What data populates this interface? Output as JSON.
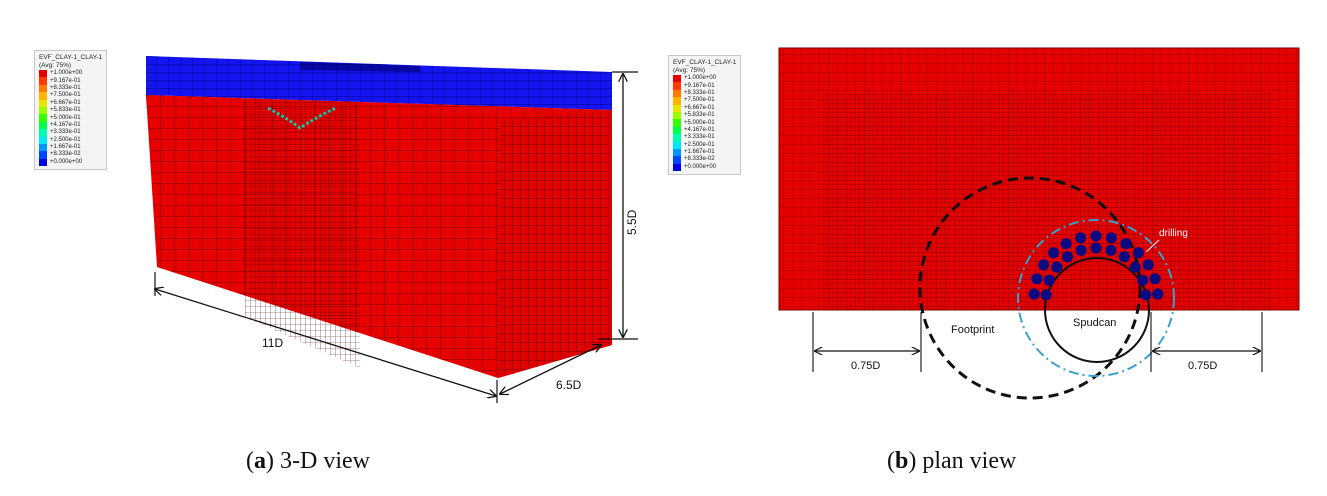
{
  "legend": {
    "title": "EVF_CLAY-1_CLAY-1",
    "subtitle": "(Avg: 75%)",
    "entries": [
      {
        "value": "+1.000e+00",
        "color": "#e60000"
      },
      {
        "value": "+9.167e-01",
        "color": "#ff3a00"
      },
      {
        "value": "+8.333e-01",
        "color": "#ff7a00"
      },
      {
        "value": "+7.500e-01",
        "color": "#ffb400"
      },
      {
        "value": "+6.667e-01",
        "color": "#e6e600"
      },
      {
        "value": "+5.833e-01",
        "color": "#9cff00"
      },
      {
        "value": "+5.000e-01",
        "color": "#32ff00"
      },
      {
        "value": "+4.167e-01",
        "color": "#00ff46"
      },
      {
        "value": "+3.333e-01",
        "color": "#00ffb4"
      },
      {
        "value": "+2.500e-01",
        "color": "#00e6ff"
      },
      {
        "value": "+1.667e-01",
        "color": "#0096ff"
      },
      {
        "value": "+8.333e-02",
        "color": "#0046ff"
      },
      {
        "value": "+0.000e+00",
        "color": "#0000e0"
      }
    ]
  },
  "view_3d": {
    "dimensions": {
      "length": "11D",
      "width": "6.5D",
      "height": "5.5D"
    },
    "caption_letter": "a",
    "caption_text": " 3-D view"
  },
  "view_plan": {
    "labels": {
      "footprint": "Footprint",
      "spudcan": "Spudcan",
      "drilling": "drilling",
      "left_dim": "0.75D",
      "right_dim": "0.75D"
    },
    "caption_letter": "b",
    "caption_text": " plan view"
  },
  "colors": {
    "clay": "#e60000",
    "blue_layer": "#1414f0",
    "drill_holes": "#0a0a82",
    "drilling_circle": "#3aa0d0"
  }
}
